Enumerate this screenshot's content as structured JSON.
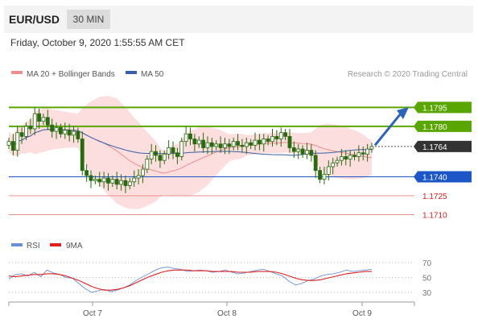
{
  "header": {
    "pair": "EUR/USD",
    "timeframe": "30 MIN",
    "datetime": "Friday, October 9, 2020 1:55:55 AM CET"
  },
  "colors": {
    "resistance": "#5aa600",
    "support": "#1d57c7",
    "weak_level": "#f08c8c",
    "current": "#333333",
    "candle": "#2a6a0f",
    "bollinger": "#fbd0d0",
    "ma20": "#f08c8c",
    "ma50": "#3a5fa8",
    "rsi": "#6b8fd6",
    "rsi_ma": "#e02020",
    "arrow": "#2d63b8"
  },
  "chart_data": [
    {
      "type": "candlestick",
      "legend": [
        {
          "name": "MA 20 + Bollinger Bands",
          "color": "#f08c8c"
        },
        {
          "name": "MA 50",
          "color": "#3a5fa8"
        }
      ],
      "credit": "Research © 2020 Trading Central",
      "x_ticks": [
        "Oct 7",
        "Oct 8",
        "Oct 9"
      ],
      "ylim": [
        1.1695,
        1.1815
      ],
      "levels": [
        {
          "value": 1.1795,
          "label": "1.1795",
          "role": "resistance"
        },
        {
          "value": 1.178,
          "label": "1.1780",
          "role": "resistance"
        },
        {
          "value": 1.1764,
          "label": "1.1764",
          "role": "current"
        },
        {
          "value": 1.174,
          "label": "1.1740",
          "role": "support"
        },
        {
          "value": 1.1725,
          "label": "1.1725",
          "role": "weak"
        },
        {
          "value": 1.171,
          "label": "1.1710",
          "role": "weak"
        }
      ],
      "close": [
        1.1768,
        1.1761,
        1.1775,
        1.1772,
        1.178,
        1.1778,
        1.179,
        1.1784,
        1.1787,
        1.1781,
        1.1776,
        1.1779,
        1.1774,
        1.1777,
        1.1773,
        1.1776,
        1.177,
        1.1745,
        1.1741,
        1.1737,
        1.1738,
        1.1736,
        1.1739,
        1.1735,
        1.1738,
        1.1734,
        1.1737,
        1.1733,
        1.1736,
        1.1739,
        1.1741,
        1.1746,
        1.1754,
        1.176,
        1.1757,
        1.1753,
        1.1758,
        1.1763,
        1.1759,
        1.1756,
        1.1768,
        1.1774,
        1.177,
        1.1766,
        1.1769,
        1.1763,
        1.1767,
        1.1764,
        1.1766,
        1.1763,
        1.1766,
        1.1764,
        1.1768,
        1.1765,
        1.1764,
        1.1767,
        1.1765,
        1.1769,
        1.1766,
        1.177,
        1.1768,
        1.1772,
        1.177,
        1.1775,
        1.1772,
        1.1763,
        1.176,
        1.1762,
        1.1758,
        1.1761,
        1.1757,
        1.1745,
        1.1738,
        1.1742,
        1.1748,
        1.1751,
        1.1753,
        1.1756,
        1.1754,
        1.1757,
        1.1756,
        1.1759,
        1.1758,
        1.1762,
        1.1764
      ]
    },
    {
      "type": "line",
      "legend": [
        {
          "name": "RSI",
          "color": "#6b8fd6"
        },
        {
          "name": "9MA",
          "color": "#e02020"
        }
      ],
      "y_ticks": [
        70,
        50,
        30
      ],
      "ylim": [
        20,
        80
      ],
      "series": [
        {
          "name": "RSI",
          "values": [
            48,
            54,
            55,
            52,
            57,
            51,
            60,
            56,
            54,
            50,
            49,
            42,
            35,
            30,
            32,
            34,
            31,
            33,
            36,
            40,
            46,
            51,
            55,
            60,
            63,
            64,
            62,
            61,
            58,
            59,
            60,
            59,
            57,
            58,
            60,
            57,
            55,
            56,
            58,
            60,
            61,
            58,
            55,
            52,
            45,
            40,
            42,
            46,
            48,
            52,
            54,
            55,
            57,
            60,
            58,
            59,
            60,
            61
          ]
        },
        {
          "name": "9MA",
          "values": [
            52,
            51,
            52,
            53,
            54,
            54,
            55,
            55,
            54,
            52,
            49,
            46,
            42,
            38,
            35,
            33,
            33,
            34,
            36,
            39,
            43,
            47,
            51,
            54,
            57,
            59,
            60,
            60,
            60,
            59,
            59,
            59,
            58,
            58,
            58,
            58,
            57,
            57,
            57,
            58,
            58,
            58,
            57,
            55,
            52,
            49,
            47,
            46,
            46,
            47,
            49,
            51,
            53,
            55,
            56,
            57,
            58,
            58
          ]
        }
      ]
    }
  ]
}
